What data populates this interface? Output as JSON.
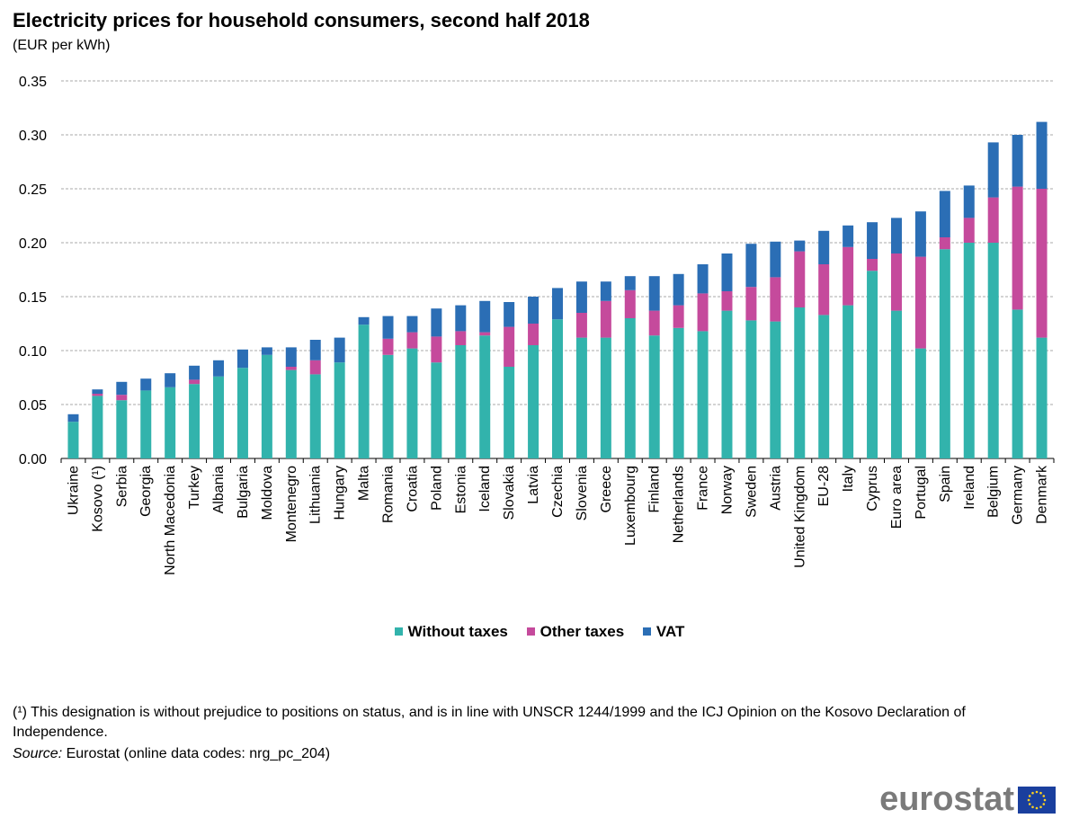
{
  "chart_data": {
    "type": "bar",
    "stacked": true,
    "title": "Electricity prices for household consumers, second half 2018",
    "subtitle": "(EUR per kWh)",
    "ylim": [
      0,
      0.35
    ],
    "yticks": [
      "0.00",
      "0.05",
      "0.10",
      "0.15",
      "0.20",
      "0.25",
      "0.30",
      "0.35"
    ],
    "ytick_values": [
      0,
      0.05,
      0.1,
      0.15,
      0.2,
      0.25,
      0.3,
      0.35
    ],
    "grid": true,
    "legend_position": "bottom",
    "categories": [
      "Ukraine",
      "Kosovo (¹)",
      "Serbia",
      "Georgia",
      "North Macedonia",
      "Turkey",
      "Albania",
      "Bulgaria",
      "Moldova",
      "Montenegro",
      "Lithuania",
      "Hungary",
      "Malta",
      "Romania",
      "Croatia",
      "Poland",
      "Estonia",
      "Iceland",
      "Slovakia",
      "Latvia",
      "Czechia",
      "Slovenia",
      "Greece",
      "Luxembourg",
      "Finland",
      "Netherlands",
      "France",
      "Norway",
      "Sweden",
      "Austria",
      "United Kingdom",
      "EU-28",
      "Italy",
      "Cyprus",
      "Euro area",
      "Portugal",
      "Spain",
      "Ireland",
      "Belgium",
      "Germany",
      "Denmark"
    ],
    "series": [
      {
        "name": "Without taxes",
        "color": "#32b3ac",
        "values": [
          0.034,
          0.058,
          0.054,
          0.063,
          0.066,
          0.069,
          0.076,
          0.084,
          0.096,
          0.082,
          0.078,
          0.089,
          0.124,
          0.096,
          0.102,
          0.089,
          0.105,
          0.114,
          0.085,
          0.105,
          0.129,
          0.112,
          0.112,
          0.13,
          0.114,
          0.121,
          0.118,
          0.137,
          0.128,
          0.127,
          0.14,
          0.133,
          0.142,
          0.174,
          0.137,
          0.102,
          0.194,
          0.2,
          0.2,
          0.138,
          0.112
        ]
      },
      {
        "name": "Other taxes",
        "color": "#c54a9c",
        "values": [
          0.0,
          0.002,
          0.005,
          0.0,
          0.0,
          0.004,
          0.0,
          0.0,
          0.0,
          0.003,
          0.013,
          0.0,
          0.0,
          0.015,
          0.015,
          0.024,
          0.013,
          0.003,
          0.037,
          0.02,
          0.0,
          0.023,
          0.034,
          0.026,
          0.023,
          0.021,
          0.035,
          0.018,
          0.031,
          0.041,
          0.052,
          0.047,
          0.054,
          0.011,
          0.053,
          0.085,
          0.011,
          0.023,
          0.042,
          0.114,
          0.138
        ]
      },
      {
        "name": "VAT",
        "color": "#2b6eb5",
        "values": [
          0.007,
          0.004,
          0.012,
          0.011,
          0.013,
          0.013,
          0.015,
          0.017,
          0.007,
          0.018,
          0.019,
          0.023,
          0.007,
          0.021,
          0.015,
          0.026,
          0.024,
          0.029,
          0.023,
          0.025,
          0.029,
          0.029,
          0.018,
          0.013,
          0.032,
          0.029,
          0.027,
          0.035,
          0.04,
          0.033,
          0.01,
          0.031,
          0.02,
          0.034,
          0.033,
          0.042,
          0.043,
          0.03,
          0.051,
          0.048,
          0.062
        ]
      }
    ]
  },
  "legend": {
    "without_taxes": "Without taxes",
    "other_taxes": "Other taxes",
    "vat": "VAT"
  },
  "footnote": "(¹) This designation is without prejudice to positions on status, and is in line with UNSCR 1244/1999 and the ICJ Opinion on the Kosovo Declaration of Independence.",
  "source": {
    "label": "Source:",
    "text": "Eurostat (online data codes: nrg_pc_204)"
  },
  "logo": {
    "text": "eurostat",
    "icon": "eu-flag-icon"
  }
}
